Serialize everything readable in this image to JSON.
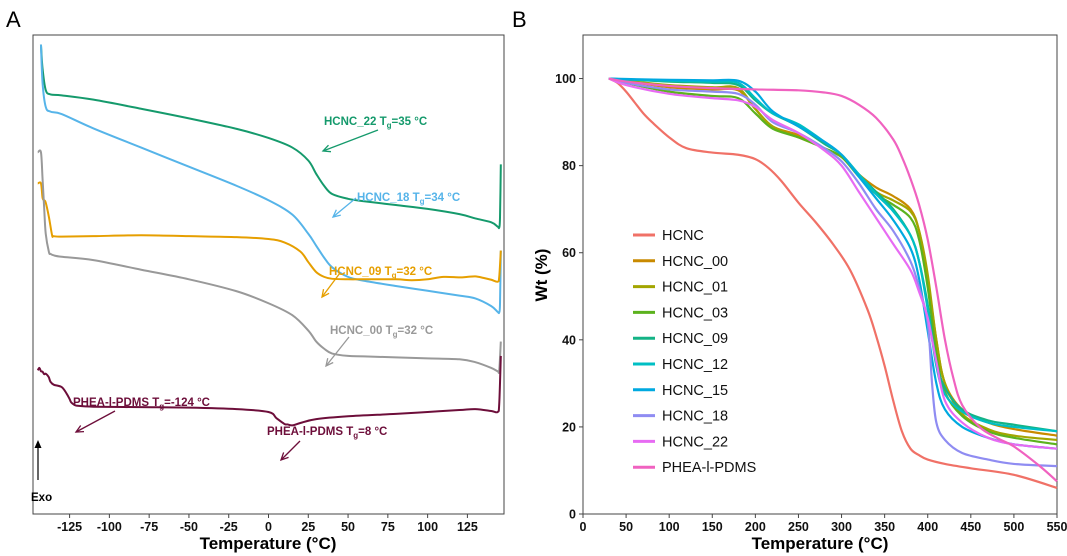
{
  "panels": {
    "a": "A",
    "b": "B"
  },
  "chart_data": [
    {
      "type": "line",
      "panel": "A",
      "xlabel": "Temperature (°C)",
      "ylabel": "",
      "xlim": [
        -148,
        148
      ],
      "xticks": [
        -125,
        -100,
        -75,
        -50,
        -25,
        0,
        25,
        50,
        75,
        100,
        125
      ],
      "y_ticks_shown": false,
      "marker_label": "Exo",
      "series": [
        {
          "key": "HCNC_22",
          "color": "#159a6c",
          "x": [
            -143,
            -142,
            -140,
            -137,
            -130,
            -110,
            -80,
            -50,
            -20,
            0,
            15,
            25,
            30,
            35,
            40,
            50,
            60,
            80,
            100,
            120,
            130,
            140,
            144,
            145,
            145.5,
            146
          ],
          "y": [
            0.98,
            0.93,
            0.885,
            0.876,
            0.874,
            0.865,
            0.846,
            0.826,
            0.804,
            0.785,
            0.765,
            0.738,
            0.71,
            0.685,
            0.668,
            0.658,
            0.653,
            0.645,
            0.637,
            0.626,
            0.617,
            0.609,
            0.6,
            0.598,
            0.62,
            0.73
          ]
        },
        {
          "key": "HCNC_18",
          "color": "#56b4e9",
          "x": [
            -143,
            -142,
            -140,
            -137,
            -130,
            -110,
            -80,
            -50,
            -20,
            0,
            15,
            25,
            30,
            35,
            40,
            50,
            60,
            80,
            100,
            120,
            130,
            140,
            144,
            145,
            145.5,
            146
          ],
          "y": [
            0.98,
            0.9,
            0.85,
            0.84,
            0.835,
            0.805,
            0.765,
            0.725,
            0.685,
            0.655,
            0.625,
            0.585,
            0.56,
            0.535,
            0.515,
            0.495,
            0.487,
            0.476,
            0.466,
            0.456,
            0.45,
            0.434,
            0.422,
            0.421,
            0.44,
            0.55
          ]
        },
        {
          "key": "HCNC_09",
          "color": "#e69f00",
          "x": [
            -145,
            -143,
            -142,
            -141,
            -140,
            -138,
            -136,
            -135,
            -130,
            -110,
            -80,
            -50,
            -20,
            0,
            10,
            20,
            25,
            30,
            35,
            40,
            50,
            60,
            80,
            90,
            100,
            110,
            120,
            125,
            130,
            135,
            140,
            144,
            145,
            146
          ],
          "y": [
            0.69,
            0.69,
            0.66,
            0.655,
            0.65,
            0.62,
            0.582,
            0.58,
            0.579,
            0.58,
            0.582,
            0.58,
            0.578,
            0.574,
            0.567,
            0.548,
            0.526,
            0.505,
            0.495,
            0.491,
            0.49,
            0.49,
            0.49,
            0.488,
            0.49,
            0.495,
            0.494,
            0.495,
            0.496,
            0.493,
            0.489,
            0.485,
            0.495,
            0.55
          ]
        },
        {
          "key": "HCNC_00",
          "color": "#999999",
          "x": [
            -145,
            -143,
            -142,
            -141,
            -140,
            -138,
            -137,
            -135,
            -130,
            -110,
            -80,
            -50,
            -20,
            0,
            15,
            25,
            30,
            35,
            40,
            50,
            60,
            80,
            100,
            120,
            130,
            140,
            144,
            145,
            146
          ],
          "y": [
            0.755,
            0.755,
            0.7,
            0.64,
            0.585,
            0.547,
            0.543,
            0.54,
            0.537,
            0.53,
            0.51,
            0.49,
            0.465,
            0.44,
            0.415,
            0.383,
            0.36,
            0.345,
            0.335,
            0.33,
            0.329,
            0.327,
            0.325,
            0.323,
            0.317,
            0.305,
            0.298,
            0.3,
            0.36
          ]
        },
        {
          "key": "PHEA-l-PDMS",
          "color": "#6d0e3a",
          "x": [
            -145,
            -144,
            -143,
            -142,
            -141,
            -140,
            -139,
            -138,
            -137,
            -135,
            -130,
            -127,
            -125,
            -124,
            -122,
            -120,
            -110,
            -80,
            -50,
            -20,
            0,
            5,
            10,
            12,
            15,
            20,
            30,
            50,
            80,
            100,
            120,
            130,
            140,
            144,
            145,
            146
          ],
          "y": [
            0.3,
            0.305,
            0.298,
            0.297,
            0.292,
            0.293,
            0.29,
            0.285,
            0.276,
            0.27,
            0.265,
            0.252,
            0.24,
            0.233,
            0.228,
            0.226,
            0.224,
            0.223,
            0.222,
            0.219,
            0.213,
            0.2,
            0.188,
            0.187,
            0.185,
            0.19,
            0.198,
            0.204,
            0.209,
            0.213,
            0.217,
            0.219,
            0.215,
            0.213,
            0.23,
            0.33
          ]
        }
      ],
      "annotations": [
        {
          "name": "HCNC_22",
          "main": "HCNC_22 T",
          "sub": "g",
          "rest": "=35 °C",
          "color": "#159a6c"
        },
        {
          "name": "HCNC_18",
          "main": "HCNC_18 T",
          "sub": "g",
          "rest": "=34 °C",
          "color": "#56b4e9"
        },
        {
          "name": "HCNC_09",
          "main": "HCNC_09 T",
          "sub": "g",
          "rest": "=32 °C",
          "color": "#e69f00"
        },
        {
          "name": "HCNC_00",
          "main": "HCNC_00 T",
          "sub": "g",
          "rest": "=32 °C",
          "color": "#999999"
        },
        {
          "name": "PHEA-low",
          "main": "PHEA-l-PDMS T",
          "sub": "g",
          "rest": "=-124 °C",
          "color": "#6d0e3a"
        },
        {
          "name": "PHEA-high",
          "main": "PHEA-l-PDMS T",
          "sub": "g",
          "rest": "=8 °C",
          "color": "#6d0e3a"
        }
      ]
    },
    {
      "type": "line",
      "panel": "B",
      "xlabel": "Temperature (°C)",
      "ylabel": "Wt (%)",
      "xlim": [
        0,
        550
      ],
      "ylim": [
        0,
        110
      ],
      "xticks": [
        0,
        50,
        100,
        150,
        200,
        250,
        300,
        350,
        400,
        450,
        500,
        550
      ],
      "yticks": [
        0,
        20,
        40,
        60,
        80,
        100
      ],
      "legend_position": "left-middle",
      "series": [
        {
          "name": "HCNC",
          "color": "#f07167",
          "x": [
            30,
            40,
            50,
            60,
            70,
            80,
            100,
            120,
            150,
            180,
            200,
            215,
            230,
            250,
            270,
            290,
            310,
            330,
            340,
            350,
            360,
            370,
            380,
            390,
            400,
            420,
            450,
            500,
            550
          ],
          "y": [
            100,
            99,
            97,
            94.5,
            92,
            90,
            86.5,
            84,
            83,
            82.5,
            81.5,
            79.5,
            76.5,
            71.5,
            67,
            62,
            56,
            47,
            41,
            34,
            26,
            19,
            15,
            13.5,
            12.5,
            11.5,
            10.5,
            9,
            6
          ]
        },
        {
          "name": "HCNC_00",
          "color": "#c98a00",
          "x": [
            30,
            50,
            100,
            150,
            180,
            200,
            220,
            250,
            280,
            300,
            320,
            340,
            360,
            380,
            390,
            400,
            410,
            420,
            440,
            470,
            500,
            550
          ],
          "y": [
            100,
            99.4,
            98,
            97.5,
            97.3,
            93,
            89,
            87,
            84,
            82,
            78,
            75,
            73,
            70,
            65,
            54,
            40,
            30,
            24,
            21,
            19.5,
            18
          ]
        },
        {
          "name": "HCNC_01",
          "color": "#a3a500",
          "x": [
            30,
            50,
            100,
            150,
            180,
            200,
            220,
            250,
            280,
            300,
            320,
            340,
            360,
            380,
            390,
            400,
            410,
            420,
            440,
            470,
            500,
            550
          ],
          "y": [
            100,
            99.5,
            98.5,
            98,
            97.8,
            93,
            89,
            86.5,
            84,
            82,
            78,
            74,
            72,
            69.5,
            65,
            55,
            40,
            30,
            23,
            19.5,
            18,
            17
          ]
        },
        {
          "name": "HCNC_03",
          "color": "#5cb21e",
          "x": [
            30,
            50,
            100,
            150,
            180,
            200,
            220,
            250,
            280,
            300,
            320,
            340,
            360,
            380,
            390,
            400,
            410,
            420,
            440,
            470,
            500,
            550
          ],
          "y": [
            100,
            99,
            97,
            96,
            95.5,
            92,
            88.5,
            86.5,
            84,
            82,
            77.5,
            73.5,
            71,
            68,
            63,
            52,
            37,
            28,
            22.5,
            19,
            17.5,
            16
          ]
        },
        {
          "name": "HCNC_09",
          "color": "#14b386",
          "x": [
            30,
            50,
            100,
            150,
            180,
            200,
            220,
            250,
            280,
            300,
            320,
            340,
            360,
            380,
            390,
            400,
            410,
            420,
            440,
            470,
            500,
            550
          ],
          "y": [
            100,
            99.8,
            99.3,
            99,
            98.5,
            95,
            92,
            89,
            85,
            82.5,
            78,
            74,
            70,
            64,
            58,
            48,
            35,
            29,
            24,
            21.5,
            20.5,
            19
          ]
        },
        {
          "name": "HCNC_12",
          "color": "#00bfc4",
          "x": [
            30,
            50,
            100,
            150,
            180,
            200,
            220,
            250,
            280,
            300,
            320,
            340,
            360,
            380,
            390,
            400,
            410,
            420,
            440,
            470,
            500,
            550
          ],
          "y": [
            100,
            99.8,
            99.5,
            99.3,
            99,
            95.5,
            92,
            89.5,
            85.5,
            82.5,
            78,
            73.5,
            69.5,
            64,
            58,
            47,
            34,
            27.5,
            23.5,
            21,
            20,
            19
          ]
        },
        {
          "name": "HCNC_15",
          "color": "#00a9e0",
          "x": [
            30,
            50,
            100,
            150,
            180,
            200,
            220,
            250,
            280,
            300,
            320,
            340,
            360,
            380,
            390,
            400,
            410,
            420,
            440,
            470,
            500,
            550
          ],
          "y": [
            100,
            99.9,
            99.7,
            99.6,
            99.5,
            97,
            92.5,
            89,
            85.5,
            82.5,
            77.5,
            72.5,
            67.5,
            61,
            54,
            42,
            30,
            24,
            20,
            17.5,
            16,
            15
          ]
        },
        {
          "name": "HCNC_18",
          "color": "#8f8cf2",
          "x": [
            30,
            50,
            100,
            150,
            180,
            200,
            220,
            250,
            280,
            300,
            320,
            340,
            360,
            380,
            390,
            400,
            405,
            410,
            420,
            440,
            470,
            500,
            550
          ],
          "y": [
            100,
            99,
            97.5,
            97,
            96.5,
            94,
            90,
            87.5,
            84,
            81,
            76,
            70,
            65,
            58,
            52,
            44,
            30,
            21,
            17,
            14,
            12.5,
            11.5,
            11
          ]
        },
        {
          "name": "HCNC_22",
          "color": "#e76bf3",
          "x": [
            30,
            50,
            100,
            150,
            180,
            200,
            220,
            250,
            280,
            300,
            320,
            340,
            360,
            380,
            390,
            400,
            410,
            420,
            440,
            470,
            500,
            550
          ],
          "y": [
            100,
            98.5,
            96.5,
            95.5,
            95,
            93.5,
            90.5,
            87.5,
            83.5,
            80,
            74,
            68,
            62,
            56,
            51,
            45,
            35,
            26,
            21,
            17.5,
            16,
            15
          ]
        },
        {
          "name": "PHEA-l-PDMS",
          "color": "#f062c0",
          "x": [
            30,
            50,
            100,
            150,
            200,
            250,
            280,
            300,
            320,
            340,
            360,
            370,
            380,
            390,
            400,
            410,
            420,
            430,
            440,
            460,
            480,
            500,
            530,
            550
          ],
          "y": [
            100,
            99.3,
            98.3,
            97.8,
            97.5,
            97.3,
            96.8,
            96,
            94,
            91,
            86,
            82,
            77,
            71,
            63,
            52,
            40,
            31,
            25,
            20,
            17.5,
            15.5,
            11,
            7.5
          ]
        }
      ]
    }
  ]
}
